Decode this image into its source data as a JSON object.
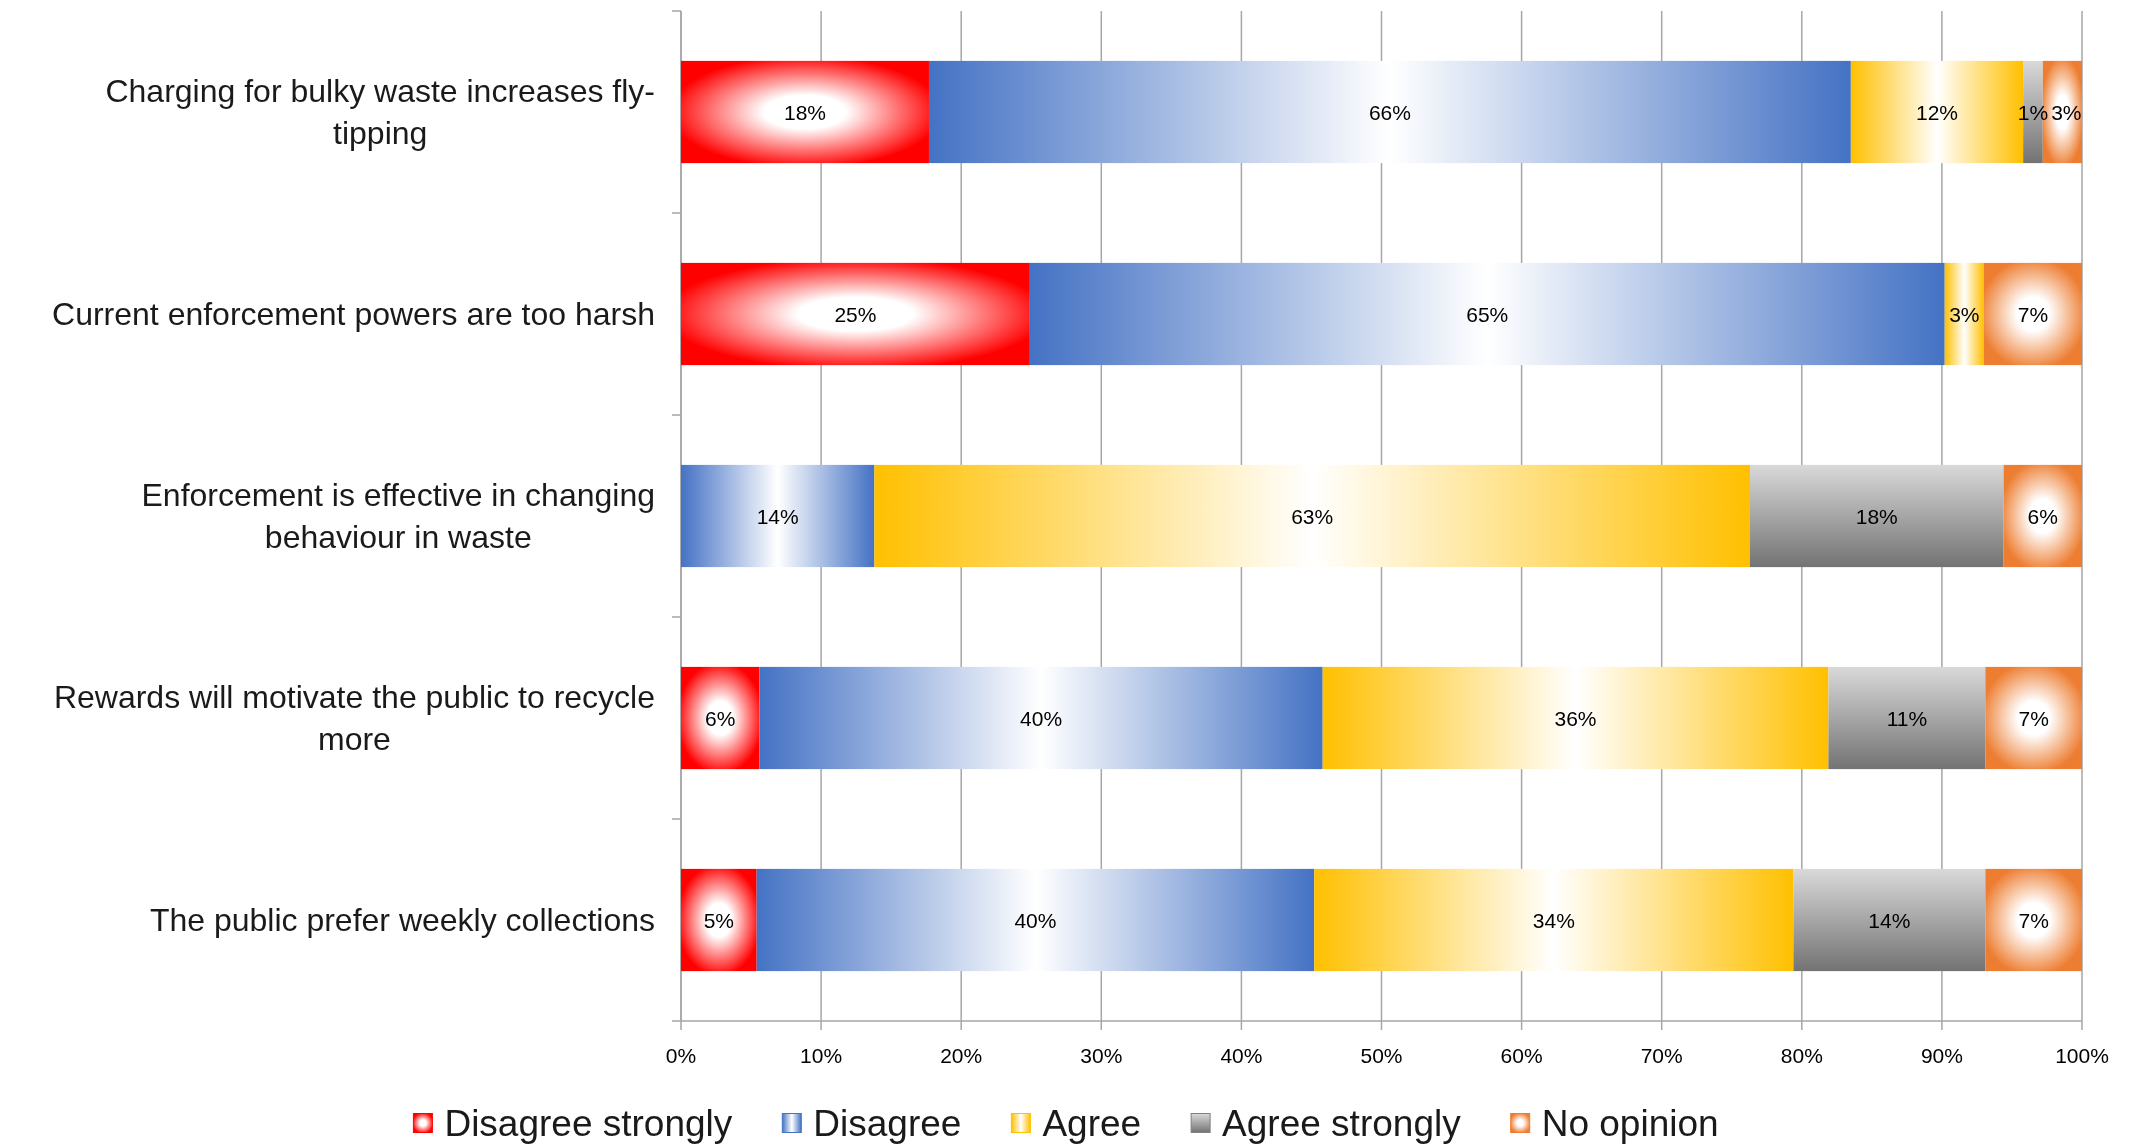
{
  "chart_data": {
    "type": "bar",
    "orientation": "horizontal",
    "stacked": true,
    "categories": [
      "Charging for bulky waste increases fly-tipping",
      "Current enforcement powers are too harsh",
      "Enforcement is effective in changing behaviour in waste",
      "Rewards will motivate the public to recycle more",
      "The public prefer weekly collections"
    ],
    "series": [
      {
        "name": "Disagree strongly",
        "color": "#ff0000",
        "values": [
          17.7,
          24.9,
          null,
          5.6,
          5.4
        ],
        "value_labels": [
          "18%",
          "25%",
          null,
          "6%",
          "5%"
        ]
      },
      {
        "name": "Disagree",
        "color": "#4472c4",
        "values": [
          65.8,
          65.3,
          13.8,
          40.2,
          39.8
        ],
        "value_labels": [
          "66%",
          "65%",
          "14%",
          "40%",
          "40%"
        ]
      },
      {
        "name": "Agree",
        "color": "#ffc000",
        "values": [
          12.3,
          2.8,
          62.5,
          36.1,
          34.2
        ],
        "value_labels": [
          "12%",
          "3%",
          "63%",
          "36%",
          "34%"
        ]
      },
      {
        "name": "Agree strongly",
        "color": "#808080",
        "values": [
          1.4,
          null,
          18.1,
          11.2,
          13.7
        ],
        "value_labels": [
          "1%",
          null,
          "18%",
          "11%",
          "14%"
        ]
      },
      {
        "name": "No opinion",
        "color": "#ed7d31",
        "values": [
          2.8,
          7.0,
          5.6,
          6.9,
          6.9
        ],
        "value_labels": [
          "3%",
          "7%",
          "6%",
          "7%",
          "7%"
        ]
      }
    ],
    "xlim": [
      0,
      100
    ],
    "xticks": [
      {
        "value": 0,
        "label": "0%"
      },
      {
        "value": 10,
        "label": "10%"
      },
      {
        "value": 20,
        "label": "20%"
      },
      {
        "value": 30,
        "label": "30%"
      },
      {
        "value": 40,
        "label": "40%"
      },
      {
        "value": 50,
        "label": "50%"
      },
      {
        "value": 60,
        "label": "60%"
      },
      {
        "value": 70,
        "label": "70%"
      },
      {
        "value": 80,
        "label": "80%"
      },
      {
        "value": 90,
        "label": "90%"
      },
      {
        "value": 100,
        "label": "100%"
      }
    ],
    "grid": "x",
    "legend": "bottom"
  }
}
